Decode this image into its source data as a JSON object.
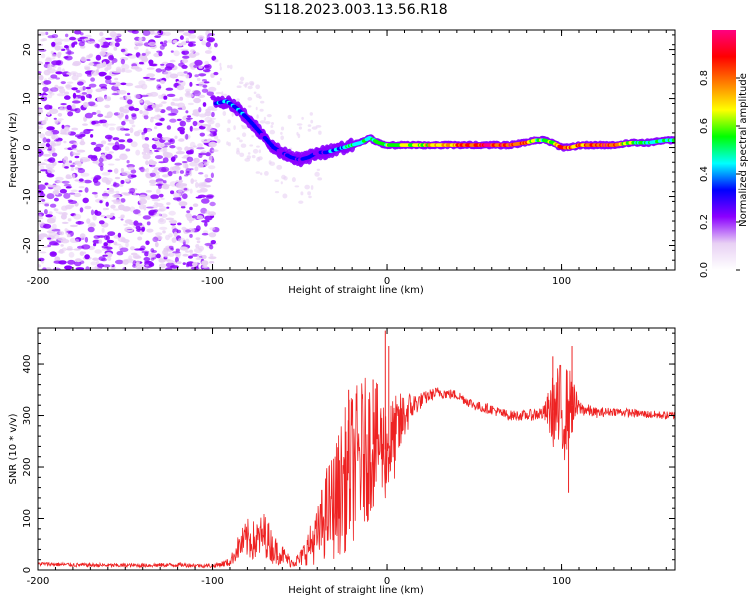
{
  "title": "S118.2023.003.13.56.R18",
  "chart_data": [
    {
      "type": "heatmap",
      "xlabel": "Height of straight line (km)",
      "ylabel": "Frequency (Hz)",
      "xlim": [
        -200,
        165
      ],
      "ylim": [
        -25,
        24
      ],
      "x_ticks": [
        -200,
        -100,
        0,
        100
      ],
      "y_ticks": [
        -20,
        -10,
        0,
        10,
        20
      ],
      "noise_region_x": [
        -200,
        -98
      ],
      "ridge": {
        "x": [
          -98,
          -92,
          -86,
          -80,
          -75,
          -70,
          -65,
          -60,
          -55,
          -50,
          -45,
          -40,
          -35,
          -30,
          -25,
          -20,
          -15,
          -10,
          -5,
          0,
          10,
          20,
          30,
          40,
          50,
          60,
          70,
          80,
          85,
          90,
          95,
          100,
          105,
          110,
          120,
          130,
          140,
          150,
          160,
          165
        ],
        "y": [
          9,
          9.5,
          8,
          6,
          4,
          2,
          0,
          -1,
          -2,
          -2.5,
          -2,
          -1,
          -1,
          -0.5,
          0,
          0.5,
          1,
          2,
          1,
          0.5,
          0.5,
          0.5,
          0.5,
          0.5,
          0.5,
          0.5,
          0.5,
          1,
          1.5,
          1.5,
          1,
          0,
          0,
          0.5,
          0.5,
          0.5,
          1,
          1,
          1.5,
          1.5
        ],
        "amplitude": [
          0.35,
          0.45,
          0.4,
          0.35,
          0.3,
          0.3,
          0.35,
          0.3,
          0.35,
          0.3,
          0.3,
          0.3,
          0.35,
          0.4,
          0.45,
          0.5,
          0.55,
          0.5,
          0.55,
          0.6,
          0.65,
          0.7,
          0.75,
          0.8,
          0.9,
          0.95,
          0.9,
          0.8,
          0.6,
          0.6,
          0.65,
          0.9,
          0.85,
          0.8,
          0.9,
          0.9,
          0.6,
          0.5,
          0.55,
          0.5
        ]
      },
      "colorbar": {
        "label": "Normalized spectral amplitude",
        "range": [
          0,
          1
        ],
        "ticks": [
          "0.0",
          "0.2",
          "0.4",
          "0.6",
          "0.8"
        ],
        "colormap": [
          "#ffffff",
          "#e8d0f4",
          "#8b00ff",
          "#0000ff",
          "#00ffff",
          "#00ff00",
          "#ffff00",
          "#ff7f00",
          "#ff0000",
          "#ff0080"
        ]
      }
    },
    {
      "type": "line",
      "xlabel": "Height of straight line (km)",
      "ylabel": "SNR (10 * v/v)",
      "xlim": [
        -200,
        165
      ],
      "ylim": [
        0,
        470
      ],
      "x_ticks": [
        -200,
        -100,
        0,
        100
      ],
      "y_ticks": [
        0,
        100,
        200,
        300,
        400
      ],
      "series": [
        {
          "color": "#ee2222",
          "x": [
            -200,
            -180,
            -160,
            -140,
            -120,
            -100,
            -90,
            -85,
            -80,
            -75,
            -70,
            -65,
            -60,
            -55,
            -50,
            -45,
            -40,
            -35,
            -30,
            -25,
            -20,
            -15,
            -10,
            -5,
            0,
            5,
            10,
            15,
            20,
            25,
            30,
            35,
            40,
            45,
            50,
            55,
            60,
            65,
            70,
            80,
            90,
            95,
            100,
            105,
            110,
            120,
            130,
            140,
            150,
            160,
            165
          ],
          "y": [
            12,
            10,
            9,
            9,
            10,
            8,
            15,
            45,
            60,
            55,
            70,
            40,
            30,
            15,
            20,
            45,
            65,
            110,
            130,
            170,
            200,
            220,
            240,
            250,
            230,
            260,
            300,
            320,
            330,
            340,
            345,
            342,
            340,
            330,
            320,
            315,
            312,
            305,
            300,
            300,
            305,
            310,
            300,
            320,
            315,
            305,
            308,
            305,
            302,
            300,
            300
          ],
          "noise": [
            4,
            4,
            4,
            4,
            4,
            4,
            8,
            25,
            40,
            40,
            45,
            30,
            20,
            10,
            15,
            35,
            55,
            90,
            110,
            140,
            150,
            150,
            140,
            110,
            100,
            80,
            50,
            25,
            15,
            12,
            12,
            10,
            10,
            10,
            10,
            10,
            10,
            10,
            10,
            10,
            15,
            70,
            110,
            70,
            15,
            10,
            8,
            8,
            8,
            8,
            8
          ],
          "spikes": [
            {
              "x": -22,
              "y": 350
            },
            {
              "x": -8,
              "y": 370
            },
            {
              "x": -1,
              "y": 465
            },
            {
              "x": 1,
              "y": 435
            },
            {
              "x": 95,
              "y": 415
            },
            {
              "x": 106,
              "y": 435
            },
            {
              "x": 104,
              "y": 150
            }
          ]
        }
      ]
    }
  ]
}
